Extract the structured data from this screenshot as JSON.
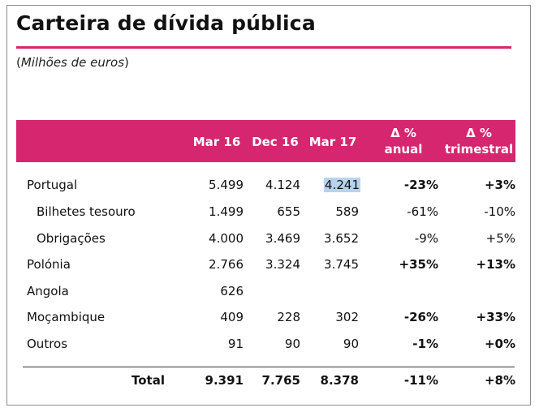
{
  "title": "Carteira de dívida pública",
  "subtitle": {
    "open": "(",
    "italic": "Milhões de euros",
    "close": ")"
  },
  "table": {
    "columns": [
      {
        "line1": "Mar 16",
        "line2": ""
      },
      {
        "line1": "Dec 16",
        "line2": ""
      },
      {
        "line1": "Mar 17",
        "line2": ""
      },
      {
        "line1": "Δ %",
        "line2": "anual"
      },
      {
        "line1": "Δ %",
        "line2": "trimestral"
      }
    ],
    "rows": [
      {
        "label": "Portugal",
        "values": [
          "5.499",
          "4.124",
          "4.241",
          "-23%",
          "+3%"
        ]
      },
      {
        "label": "Bilhetes tesouro",
        "values": [
          "1.499",
          "655",
          "589",
          "-61%",
          "-10%"
        ]
      },
      {
        "label": "Obrigações",
        "values": [
          "4.000",
          "3.469",
          "3.652",
          "-9%",
          "+5%"
        ]
      },
      {
        "label": "Polónia",
        "values": [
          "2.766",
          "3.324",
          "3.745",
          "+35%",
          "+13%"
        ]
      },
      {
        "label": "Angola",
        "values": [
          "626",
          "",
          "",
          "",
          ""
        ]
      },
      {
        "label": "Moçambique",
        "values": [
          "409",
          "228",
          "302",
          "-26%",
          "+33%"
        ]
      },
      {
        "label": "Outros",
        "values": [
          "91",
          "90",
          "90",
          "-1%",
          "+0%"
        ]
      }
    ],
    "total": {
      "label": "Total",
      "values": [
        "9.391",
        "7.765",
        "8.378",
        "-11%",
        "+8%"
      ]
    }
  },
  "colors": {
    "accent": "#d5266f",
    "selection": "#b7d3ee"
  }
}
